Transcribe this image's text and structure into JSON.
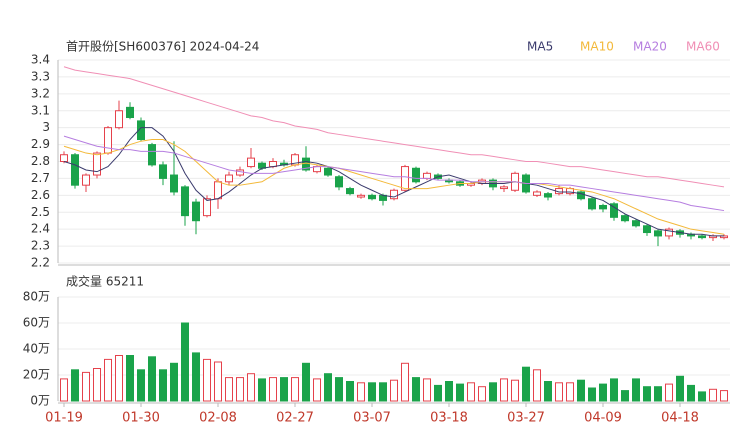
{
  "chart_data": [
    {
      "type": "candlestick",
      "title": "首开股份[SH600376] 2024-04-24",
      "up_color": "#e5414b",
      "down_color": "#1aa34a",
      "open": [
        2.8,
        2.84,
        2.66,
        2.72,
        2.85,
        3.0,
        3.12,
        3.04,
        2.9,
        2.78,
        2.72,
        2.65,
        2.56,
        2.48,
        2.58,
        2.68,
        2.72,
        2.77,
        2.79,
        2.77,
        2.79,
        2.78,
        2.82,
        2.74,
        2.76,
        2.71,
        2.64,
        2.59,
        2.6,
        2.6,
        2.58,
        2.63,
        2.76,
        2.7,
        2.72,
        2.69,
        2.68,
        2.66,
        2.67,
        2.69,
        2.64,
        2.63,
        2.72,
        2.6,
        2.61,
        2.61,
        2.61,
        2.62,
        2.58,
        2.54,
        2.55,
        2.48,
        2.45,
        2.42,
        2.39,
        2.36,
        2.39,
        2.37,
        2.36,
        2.35,
        2.35
      ],
      "high": [
        2.86,
        2.85,
        2.73,
        2.86,
        3.01,
        3.16,
        3.15,
        3.06,
        2.91,
        2.8,
        2.92,
        2.66,
        2.58,
        2.6,
        2.7,
        2.74,
        2.77,
        2.88,
        2.8,
        2.82,
        2.81,
        2.85,
        2.89,
        2.78,
        2.77,
        2.72,
        2.65,
        2.61,
        2.61,
        2.61,
        2.64,
        2.78,
        2.77,
        2.74,
        2.73,
        2.7,
        2.69,
        2.68,
        2.7,
        2.7,
        2.66,
        2.74,
        2.73,
        2.63,
        2.62,
        2.66,
        2.65,
        2.63,
        2.59,
        2.55,
        2.56,
        2.49,
        2.46,
        2.43,
        2.4,
        2.41,
        2.4,
        2.38,
        2.37,
        2.37,
        2.37
      ],
      "low": [
        2.79,
        2.64,
        2.62,
        2.7,
        2.84,
        2.99,
        3.05,
        2.92,
        2.77,
        2.66,
        2.6,
        2.42,
        2.37,
        2.47,
        2.52,
        2.66,
        2.71,
        2.76,
        2.75,
        2.76,
        2.77,
        2.77,
        2.74,
        2.73,
        2.71,
        2.63,
        2.6,
        2.58,
        2.57,
        2.54,
        2.57,
        2.62,
        2.67,
        2.69,
        2.69,
        2.67,
        2.65,
        2.65,
        2.66,
        2.63,
        2.62,
        2.62,
        2.61,
        2.59,
        2.57,
        2.6,
        2.6,
        2.57,
        2.51,
        2.5,
        2.45,
        2.44,
        2.41,
        2.36,
        2.3,
        2.34,
        2.35,
        2.34,
        2.34,
        2.33,
        2.34
      ],
      "close": [
        2.84,
        2.66,
        2.72,
        2.85,
        3.0,
        3.1,
        3.06,
        2.93,
        2.78,
        2.7,
        2.62,
        2.48,
        2.45,
        2.58,
        2.68,
        2.72,
        2.75,
        2.82,
        2.76,
        2.8,
        2.78,
        2.84,
        2.75,
        2.77,
        2.72,
        2.65,
        2.61,
        2.6,
        2.58,
        2.57,
        2.63,
        2.77,
        2.68,
        2.73,
        2.7,
        2.68,
        2.66,
        2.67,
        2.69,
        2.65,
        2.65,
        2.73,
        2.62,
        2.62,
        2.59,
        2.64,
        2.64,
        2.58,
        2.52,
        2.52,
        2.47,
        2.45,
        2.42,
        2.38,
        2.36,
        2.4,
        2.37,
        2.36,
        2.35,
        2.36,
        2.36
      ],
      "series": [
        {
          "name": "MA5",
          "color": "#3b3b6d",
          "values": [
            2.8,
            2.78,
            2.75,
            2.74,
            2.77,
            2.84,
            2.93,
            3.0,
            3.0,
            2.95,
            2.86,
            2.73,
            2.63,
            2.57,
            2.58,
            2.62,
            2.67,
            2.72,
            2.76,
            2.77,
            2.78,
            2.79,
            2.8,
            2.79,
            2.77,
            2.74,
            2.7,
            2.66,
            2.63,
            2.6,
            2.59,
            2.62,
            2.65,
            2.68,
            2.71,
            2.72,
            2.7,
            2.68,
            2.67,
            2.67,
            2.67,
            2.68,
            2.67,
            2.66,
            2.64,
            2.62,
            2.62,
            2.61,
            2.59,
            2.57,
            2.53,
            2.49,
            2.46,
            2.43,
            2.4,
            2.39,
            2.38,
            2.37,
            2.37,
            2.36,
            2.36
          ]
        },
        {
          "name": "MA10",
          "color": "#f3b93a",
          "values": [
            2.89,
            2.87,
            2.85,
            2.84,
            2.85,
            2.87,
            2.9,
            2.92,
            2.93,
            2.93,
            2.9,
            2.86,
            2.8,
            2.74,
            2.68,
            2.66,
            2.66,
            2.67,
            2.68,
            2.72,
            2.76,
            2.78,
            2.79,
            2.78,
            2.77,
            2.76,
            2.74,
            2.72,
            2.7,
            2.68,
            2.66,
            2.64,
            2.64,
            2.64,
            2.65,
            2.66,
            2.67,
            2.67,
            2.68,
            2.68,
            2.68,
            2.68,
            2.67,
            2.67,
            2.66,
            2.65,
            2.64,
            2.63,
            2.62,
            2.6,
            2.58,
            2.55,
            2.52,
            2.49,
            2.46,
            2.44,
            2.42,
            2.4,
            2.39,
            2.38,
            2.37
          ]
        },
        {
          "name": "MA20",
          "color": "#b67ee0",
          "values": [
            2.95,
            2.93,
            2.91,
            2.89,
            2.88,
            2.87,
            2.87,
            2.86,
            2.86,
            2.86,
            2.85,
            2.83,
            2.81,
            2.79,
            2.77,
            2.75,
            2.74,
            2.73,
            2.73,
            2.73,
            2.74,
            2.75,
            2.76,
            2.77,
            2.77,
            2.76,
            2.75,
            2.74,
            2.73,
            2.72,
            2.71,
            2.71,
            2.7,
            2.7,
            2.69,
            2.69,
            2.69,
            2.68,
            2.68,
            2.68,
            2.68,
            2.68,
            2.67,
            2.67,
            2.67,
            2.66,
            2.66,
            2.65,
            2.64,
            2.63,
            2.62,
            2.61,
            2.6,
            2.59,
            2.58,
            2.57,
            2.56,
            2.54,
            2.53,
            2.52,
            2.51
          ]
        },
        {
          "name": "MA60",
          "color": "#f08fb5",
          "values": [
            3.36,
            3.34,
            3.33,
            3.32,
            3.31,
            3.3,
            3.29,
            3.27,
            3.25,
            3.23,
            3.21,
            3.19,
            3.17,
            3.15,
            3.13,
            3.11,
            3.09,
            3.07,
            3.06,
            3.04,
            3.03,
            3.01,
            3.0,
            2.99,
            2.97,
            2.96,
            2.95,
            2.94,
            2.93,
            2.92,
            2.91,
            2.9,
            2.89,
            2.88,
            2.87,
            2.86,
            2.85,
            2.84,
            2.84,
            2.83,
            2.82,
            2.81,
            2.8,
            2.8,
            2.79,
            2.78,
            2.77,
            2.77,
            2.76,
            2.75,
            2.74,
            2.73,
            2.72,
            2.71,
            2.71,
            2.7,
            2.69,
            2.68,
            2.67,
            2.66,
            2.65
          ]
        }
      ],
      "ylim": [
        2.2,
        3.4
      ],
      "yticks": [
        2.2,
        2.3,
        2.4,
        2.5,
        2.6,
        2.7,
        2.8,
        2.9,
        3,
        3.1,
        3.2,
        3.3,
        3.4
      ],
      "grid": true
    },
    {
      "type": "bar",
      "title": "成交量 65211",
      "categories": [
        "01-19",
        null,
        null,
        null,
        null,
        null,
        null,
        "01-30",
        null,
        null,
        null,
        null,
        null,
        null,
        "02-08",
        null,
        null,
        null,
        null,
        null,
        null,
        "02-27",
        null,
        null,
        null,
        null,
        null,
        null,
        "03-07",
        null,
        null,
        null,
        null,
        null,
        null,
        "03-18",
        null,
        null,
        null,
        null,
        null,
        null,
        "03-27",
        null,
        null,
        null,
        null,
        null,
        null,
        "04-09",
        null,
        null,
        null,
        null,
        null,
        null,
        "04-18",
        null,
        null,
        null,
        null
      ],
      "values": [
        17,
        24,
        22,
        25,
        32,
        35,
        35,
        24,
        34,
        24,
        29,
        60,
        37,
        32,
        30,
        18,
        18,
        21,
        17,
        18,
        18,
        18,
        29,
        17,
        21,
        18,
        15,
        14,
        14,
        14,
        16,
        29,
        18,
        17,
        12,
        15,
        13,
        14,
        11,
        14,
        17,
        16,
        26,
        24,
        15,
        14,
        14,
        16,
        10,
        13,
        17,
        8,
        17,
        11,
        11,
        13,
        19,
        12,
        7,
        9,
        8
      ],
      "ylim": [
        0,
        80
      ],
      "yticks": [
        {
          "value": 0,
          "label": "0万"
        },
        {
          "value": 20,
          "label": "20万"
        },
        {
          "value": 40,
          "label": "40万"
        },
        {
          "value": 60,
          "label": "60万"
        },
        {
          "value": 80,
          "label": "80万"
        }
      ],
      "grid": true
    }
  ]
}
